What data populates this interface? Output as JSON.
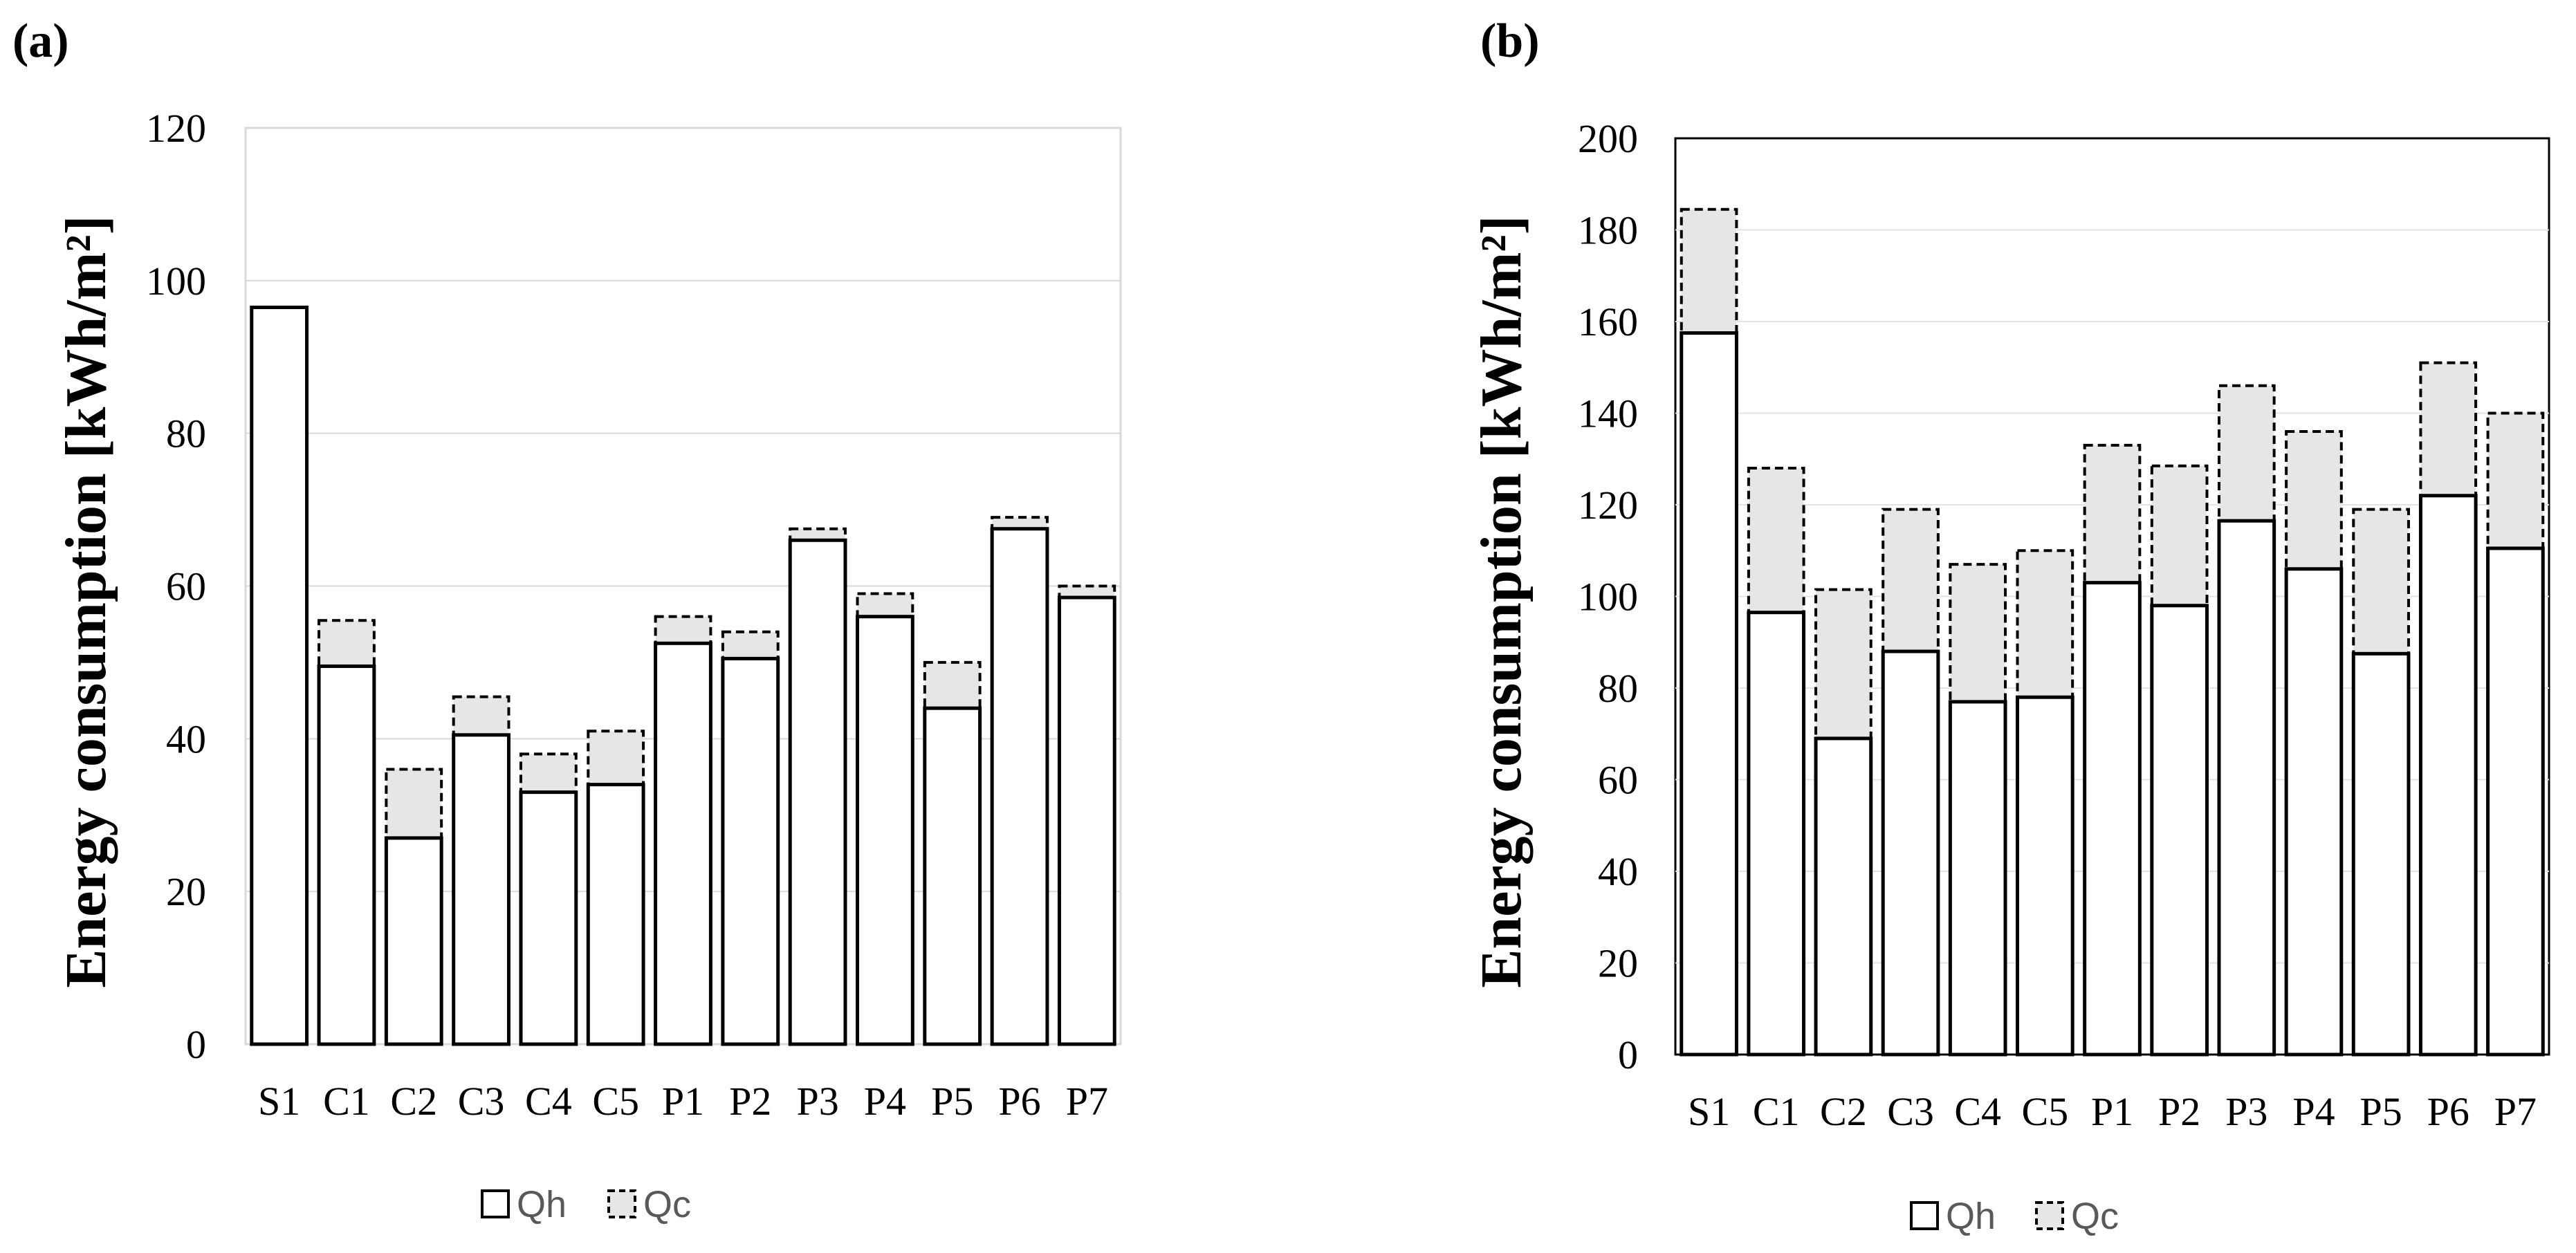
{
  "chart_data": [
    {
      "panel": "(a)",
      "type": "bar",
      "stacked": true,
      "categories": [
        "S1",
        "C1",
        "C2",
        "C3",
        "C4",
        "C5",
        "P1",
        "P2",
        "P3",
        "P4",
        "P5",
        "P6",
        "P7"
      ],
      "series": [
        {
          "name": "Qh",
          "values": [
            96.5,
            49.5,
            27,
            40.5,
            33,
            34,
            52.5,
            50.5,
            66,
            56,
            44,
            67.5,
            58.5
          ]
        },
        {
          "name": "Qc",
          "values": [
            0,
            6,
            9,
            5,
            5,
            7,
            3.5,
            3.5,
            1.5,
            3,
            6,
            1.5,
            1.5
          ]
        }
      ],
      "ylabel": "Energy consumption [kWh/m²]",
      "ylim": [
        0,
        120
      ],
      "yticks": [
        0,
        20,
        40,
        60,
        80,
        100,
        120
      ],
      "grid": true,
      "legend": "bottom"
    },
    {
      "panel": "(b)",
      "type": "bar",
      "stacked": true,
      "categories": [
        "S1",
        "C1",
        "C2",
        "C3",
        "C4",
        "C5",
        "P1",
        "P2",
        "P3",
        "P4",
        "P5",
        "P6",
        "P7"
      ],
      "series": [
        {
          "name": "Qh",
          "values": [
            157.5,
            96.5,
            69,
            88,
            77,
            78,
            103,
            98,
            116.5,
            106,
            87.5,
            122,
            110.5
          ]
        },
        {
          "name": "Qc",
          "values": [
            27,
            31.5,
            32.5,
            31,
            30,
            32,
            30,
            30.5,
            29.5,
            30,
            31.5,
            29,
            29.5
          ]
        }
      ],
      "ylabel": "Energy consumption [kWh/m²]",
      "ylim": [
        0,
        200
      ],
      "yticks": [
        0,
        20,
        40,
        60,
        80,
        100,
        120,
        140,
        160,
        180,
        200
      ],
      "grid": true,
      "legend": "bottom"
    }
  ]
}
